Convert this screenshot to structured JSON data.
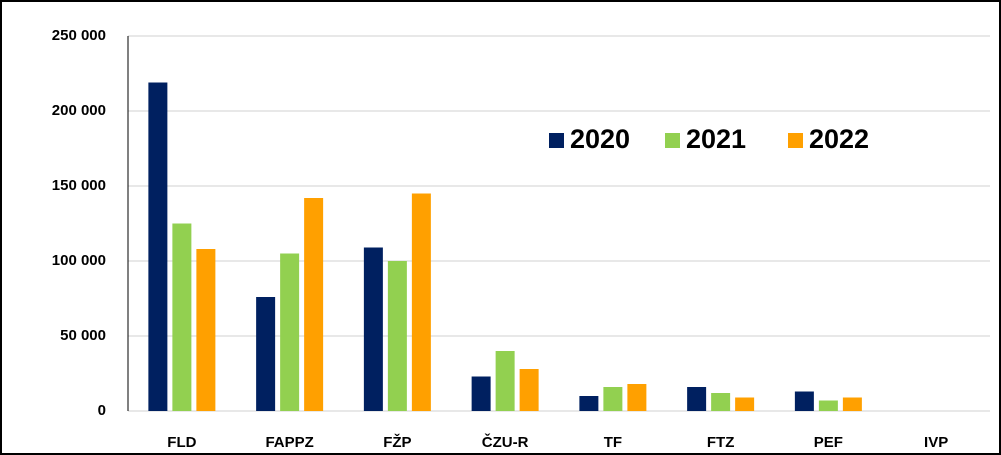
{
  "chart_data": {
    "type": "bar",
    "categories": [
      "FLD",
      "FAPPZ",
      "FŽP",
      "ČZU-R",
      "TF",
      "FTZ",
      "PEF",
      "IVP"
    ],
    "series": [
      {
        "name": "2020",
        "color": "#002060",
        "values": [
          219000,
          76000,
          109000,
          23000,
          10000,
          16000,
          13000,
          0
        ]
      },
      {
        "name": "2021",
        "color": "#92d050",
        "values": [
          125000,
          105000,
          100000,
          40000,
          16000,
          12000,
          7000,
          0
        ]
      },
      {
        "name": "2022",
        "color": "#ffa000",
        "values": [
          108000,
          142000,
          145000,
          28000,
          18000,
          9000,
          9000,
          0
        ]
      }
    ],
    "ylim": [
      0,
      250000
    ],
    "yticks": [
      0,
      {
        "value": 50000,
        "label": "50 000"
      },
      {
        "value": 100000,
        "label": "100 000"
      },
      {
        "value": 150000,
        "label": "150 000"
      },
      {
        "value": 200000,
        "label": "200 000"
      },
      {
        "value": 250000,
        "label": "250 000"
      }
    ],
    "grid": true
  }
}
